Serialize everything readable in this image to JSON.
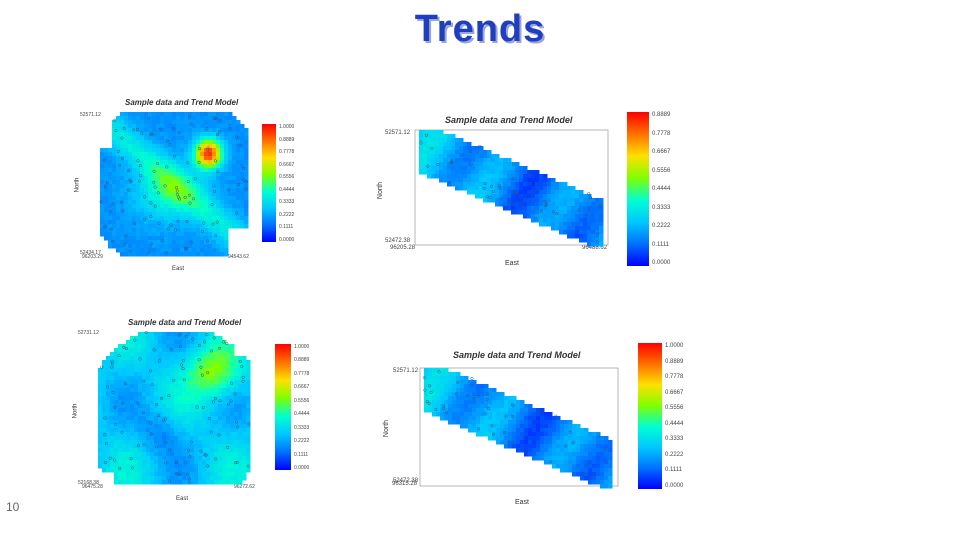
{
  "slide": {
    "title": "Trends",
    "page_number": "10"
  },
  "colors": {
    "title": "#1f3fbf",
    "ramp": [
      "#0000ff",
      "#0070ff",
      "#00c8ff",
      "#00ffd0",
      "#7fff00",
      "#ffe000",
      "#ff7000",
      "#ff0000"
    ]
  },
  "chart_data": [
    {
      "type": "heatmap",
      "title": "Sample data and Trend Model",
      "xlabel": "East",
      "ylabel": "North",
      "x_ticks": [
        "96203.29",
        "94543.62"
      ],
      "y_ticks": [
        "52571.12",
        "52434.17"
      ],
      "colorbar_ticks": [
        "1.0000",
        "0.8889",
        "0.7778",
        "0.6667",
        "0.5556",
        "0.4444",
        "0.3333",
        "0.2222",
        "0.1111",
        "0.0000"
      ]
    },
    {
      "type": "heatmap",
      "title": "Sample data and Trend Model",
      "xlabel": "East",
      "ylabel": "North",
      "x_ticks": [
        "96205.28",
        "96488.62"
      ],
      "y_ticks": [
        "52571.12",
        "52472.38"
      ],
      "colorbar_ticks": [
        "0.8889",
        "0.7778",
        "0.6667",
        "0.5556",
        "0.4444",
        "0.3333",
        "0.2222",
        "0.1111",
        "0.0000"
      ]
    },
    {
      "type": "heatmap",
      "title": "Sample data and Trend Model",
      "xlabel": "East",
      "ylabel": "North",
      "x_ticks": [
        "96475.28",
        "96272.62"
      ],
      "y_ticks": [
        "52731.12",
        "52168.38"
      ],
      "colorbar_ticks": [
        "1.0000",
        "0.8889",
        "0.7778",
        "0.6667",
        "0.5556",
        "0.4444",
        "0.3333",
        "0.2222",
        "0.1111",
        "0.0000"
      ]
    },
    {
      "type": "heatmap",
      "title": "Sample data and Trend Model",
      "xlabel": "East",
      "ylabel": "North",
      "x_ticks": [
        "96315.28",
        "96482.62"
      ],
      "y_ticks": [
        "52571.12",
        "52472.38"
      ],
      "colorbar_ticks": [
        "1.0000",
        "0.8889",
        "0.7778",
        "0.6667",
        "0.5556",
        "0.4444",
        "0.3333",
        "0.2222",
        "0.1111",
        "0.0000"
      ]
    }
  ]
}
